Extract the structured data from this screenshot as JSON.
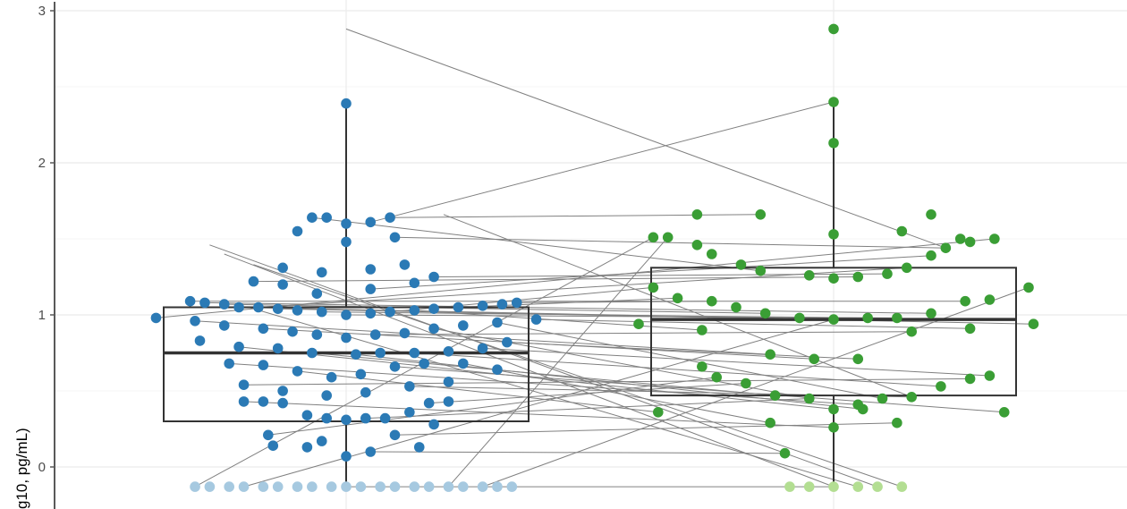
{
  "chart_data": {
    "type": "boxplot-paired",
    "title": "",
    "xlabel": "",
    "ylabel": "g10, pg/mL)",
    "ylim": [
      -0.25,
      3.05
    ],
    "yticks": [
      0,
      1,
      2,
      3
    ],
    "ytick_labels": [
      "0",
      "1",
      "2",
      "3"
    ],
    "grid": true,
    "categories": [
      "",
      ""
    ],
    "colors": {
      "group1_point": "#2b7ab5",
      "group1_below_lod": "#a6c9e0",
      "group2_point": "#3a9e35",
      "group2_below_lod": "#b3de92",
      "box_line": "#333333",
      "pair_line": "#808080",
      "grid": "#ebebeb",
      "axis": "#595959"
    },
    "boxes": [
      {
        "category_index": 0,
        "whisker_low": -0.1,
        "q1": 0.3,
        "median": 0.75,
        "q3": 1.05,
        "whisker_high": 2.39
      },
      {
        "category_index": 1,
        "whisker_low": -0.1,
        "q1": 0.47,
        "median": 0.97,
        "q3": 1.31,
        "whisker_high": 2.4
      }
    ],
    "series": [
      {
        "category_index": 0,
        "points": [
          [
            -0.39,
            0.98
          ],
          [
            -0.32,
            1.09
          ],
          [
            -0.29,
            1.08
          ],
          [
            -0.25,
            1.07
          ],
          [
            -0.22,
            1.05
          ],
          [
            -0.18,
            1.05
          ],
          [
            -0.14,
            1.04
          ],
          [
            -0.1,
            1.03
          ],
          [
            -0.05,
            1.02
          ],
          [
            0.0,
            1.0
          ],
          [
            0.05,
            1.01
          ],
          [
            0.09,
            1.02
          ],
          [
            0.14,
            1.03
          ],
          [
            0.18,
            1.04
          ],
          [
            0.23,
            1.05
          ],
          [
            0.28,
            1.06
          ],
          [
            0.32,
            1.07
          ],
          [
            0.35,
            1.08
          ],
          [
            0.39,
            0.97
          ],
          [
            -0.31,
            0.96
          ],
          [
            -0.25,
            0.93
          ],
          [
            -0.17,
            0.91
          ],
          [
            -0.11,
            0.89
          ],
          [
            -0.06,
            0.87
          ],
          [
            0.0,
            0.85
          ],
          [
            0.06,
            0.87
          ],
          [
            0.12,
            0.88
          ],
          [
            0.18,
            0.91
          ],
          [
            0.24,
            0.93
          ],
          [
            0.31,
            0.95
          ],
          [
            -0.3,
            0.83
          ],
          [
            -0.22,
            0.79
          ],
          [
            -0.14,
            0.78
          ],
          [
            -0.07,
            0.75
          ],
          [
            0.02,
            0.74
          ],
          [
            0.07,
            0.75
          ],
          [
            0.14,
            0.75
          ],
          [
            0.21,
            0.76
          ],
          [
            0.28,
            0.78
          ],
          [
            0.33,
            0.82
          ],
          [
            -0.24,
            0.68
          ],
          [
            -0.17,
            0.67
          ],
          [
            -0.1,
            0.63
          ],
          [
            -0.03,
            0.59
          ],
          [
            0.03,
            0.61
          ],
          [
            0.1,
            0.66
          ],
          [
            0.16,
            0.68
          ],
          [
            0.24,
            0.68
          ],
          [
            0.31,
            0.64
          ],
          [
            -0.21,
            0.54
          ],
          [
            -0.13,
            0.5
          ],
          [
            -0.04,
            0.47
          ],
          [
            0.04,
            0.49
          ],
          [
            0.13,
            0.53
          ],
          [
            0.21,
            0.56
          ],
          [
            -0.21,
            0.43
          ],
          [
            -0.17,
            0.43
          ],
          [
            -0.13,
            0.42
          ],
          [
            -0.08,
            0.34
          ],
          [
            -0.04,
            0.32
          ],
          [
            0.0,
            0.31
          ],
          [
            0.04,
            0.32
          ],
          [
            0.08,
            0.32
          ],
          [
            0.13,
            0.36
          ],
          [
            0.17,
            0.42
          ],
          [
            0.21,
            0.43
          ],
          [
            0.18,
            0.28
          ],
          [
            -0.16,
            0.21
          ],
          [
            -0.15,
            0.14
          ],
          [
            -0.08,
            0.13
          ],
          [
            -0.05,
            0.17
          ],
          [
            0.0,
            0.07
          ],
          [
            0.05,
            0.1
          ],
          [
            0.1,
            0.21
          ],
          [
            0.15,
            0.13
          ],
          [
            -0.07,
            1.64
          ],
          [
            -0.04,
            1.64
          ],
          [
            0.0,
            1.6
          ],
          [
            0.05,
            1.61
          ],
          [
            0.09,
            1.64
          ],
          [
            0.1,
            1.51
          ],
          [
            -0.1,
            1.55
          ],
          [
            0.0,
            1.48
          ],
          [
            -0.19,
            1.22
          ],
          [
            -0.13,
            1.31
          ],
          [
            -0.13,
            1.2
          ],
          [
            -0.05,
            1.28
          ],
          [
            0.05,
            1.3
          ],
          [
            0.12,
            1.33
          ],
          [
            0.14,
            1.21
          ],
          [
            0.18,
            1.25
          ],
          [
            -0.06,
            1.14
          ],
          [
            0.05,
            1.17
          ],
          [
            0.0,
            2.39
          ]
        ],
        "below_lod": [
          -0.31,
          -0.28,
          -0.24,
          -0.21,
          -0.17,
          -0.14,
          -0.1,
          -0.07,
          -0.03,
          0.0,
          0.03,
          0.07,
          0.1,
          0.14,
          0.17,
          0.21,
          0.24,
          0.28,
          0.31,
          0.34
        ],
        "below_lod_value": -0.13
      },
      {
        "category_index": 1,
        "points": [
          [
            0.0,
            2.88
          ],
          [
            0.0,
            2.4
          ],
          [
            0.0,
            2.13
          ],
          [
            -0.37,
            1.51
          ],
          [
            -0.28,
            1.66
          ],
          [
            -0.15,
            1.66
          ],
          [
            0.0,
            1.53
          ],
          [
            0.14,
            1.55
          ],
          [
            0.2,
            1.66
          ],
          [
            0.26,
            1.5
          ],
          [
            -0.34,
            1.51
          ],
          [
            -0.28,
            1.46
          ],
          [
            -0.25,
            1.4
          ],
          [
            -0.19,
            1.33
          ],
          [
            -0.15,
            1.29
          ],
          [
            -0.05,
            1.26
          ],
          [
            0.0,
            1.24
          ],
          [
            0.05,
            1.25
          ],
          [
            0.11,
            1.27
          ],
          [
            0.15,
            1.31
          ],
          [
            0.2,
            1.39
          ],
          [
            0.23,
            1.44
          ],
          [
            0.28,
            1.48
          ],
          [
            0.33,
            1.5
          ],
          [
            -0.37,
            1.18
          ],
          [
            -0.32,
            1.11
          ],
          [
            -0.25,
            1.09
          ],
          [
            -0.2,
            1.05
          ],
          [
            -0.14,
            1.01
          ],
          [
            -0.07,
            0.98
          ],
          [
            0.0,
            0.97
          ],
          [
            0.07,
            0.98
          ],
          [
            0.13,
            0.98
          ],
          [
            0.2,
            1.01
          ],
          [
            0.27,
            1.09
          ],
          [
            0.32,
            1.1
          ],
          [
            0.4,
            1.18
          ],
          [
            0.41,
            0.94
          ],
          [
            -0.4,
            0.94
          ],
          [
            -0.27,
            0.9
          ],
          [
            0.16,
            0.89
          ],
          [
            0.28,
            0.91
          ],
          [
            -0.13,
            0.74
          ],
          [
            -0.04,
            0.71
          ],
          [
            0.05,
            0.71
          ],
          [
            -0.27,
            0.66
          ],
          [
            -0.24,
            0.59
          ],
          [
            -0.18,
            0.55
          ],
          [
            -0.12,
            0.47
          ],
          [
            -0.05,
            0.45
          ],
          [
            0.0,
            0.38
          ],
          [
            0.06,
            0.38
          ],
          [
            0.1,
            0.45
          ],
          [
            0.16,
            0.46
          ],
          [
            0.22,
            0.53
          ],
          [
            0.28,
            0.58
          ],
          [
            0.32,
            0.6
          ],
          [
            0.35,
            0.36
          ],
          [
            -0.36,
            0.36
          ],
          [
            -0.13,
            0.29
          ],
          [
            0.0,
            0.26
          ],
          [
            0.13,
            0.29
          ],
          [
            -0.1,
            0.09
          ],
          [
            0.05,
            0.41
          ]
        ],
        "below_lod": [
          -0.09,
          -0.05,
          0.0,
          0.05,
          0.09,
          0.14
        ],
        "below_lod_value": -0.13
      }
    ],
    "pairs": [
      [
        [
          -0.39,
          0.98
        ],
        [
          0.33,
          1.5
        ]
      ],
      [
        [
          -0.32,
          1.09
        ],
        [
          0.27,
          1.09
        ]
      ],
      [
        [
          -0.29,
          1.08
        ],
        [
          0.2,
          1.01
        ]
      ],
      [
        [
          -0.25,
          1.07
        ],
        [
          -0.14,
          1.01
        ]
      ],
      [
        [
          -0.22,
          1.05
        ],
        [
          0.0,
          0.97
        ]
      ],
      [
        [
          -0.18,
          1.05
        ],
        [
          0.15,
          1.31
        ]
      ],
      [
        [
          -0.14,
          1.04
        ],
        [
          0.41,
          0.94
        ]
      ],
      [
        [
          -0.05,
          1.02
        ],
        [
          0.07,
          0.98
        ]
      ],
      [
        [
          0.0,
          1.0
        ],
        [
          0.13,
          0.98
        ]
      ],
      [
        [
          0.09,
          1.02
        ],
        [
          -0.37,
          1.18
        ]
      ],
      [
        [
          0.14,
          1.03
        ],
        [
          -0.27,
          0.9
        ]
      ],
      [
        [
          0.23,
          1.05
        ],
        [
          -0.32,
          1.11
        ]
      ],
      [
        [
          0.35,
          1.08
        ],
        [
          -0.25,
          1.09
        ]
      ],
      [
        [
          0.39,
          0.97
        ],
        [
          0.28,
          0.91
        ]
      ],
      [
        [
          -0.31,
          0.96
        ],
        [
          -0.13,
          0.74
        ]
      ],
      [
        [
          -0.17,
          0.91
        ],
        [
          -0.04,
          0.71
        ]
      ],
      [
        [
          0.06,
          0.87
        ],
        [
          0.16,
          0.89
        ]
      ],
      [
        [
          0.18,
          0.91
        ],
        [
          -0.05,
          0.45
        ]
      ],
      [
        [
          0.31,
          0.95
        ],
        [
          0.1,
          0.45
        ]
      ],
      [
        [
          -0.22,
          0.79
        ],
        [
          0.0,
          0.38
        ]
      ],
      [
        [
          -0.07,
          0.75
        ],
        [
          -0.12,
          0.47
        ]
      ],
      [
        [
          0.02,
          0.74
        ],
        [
          0.06,
          0.38
        ]
      ],
      [
        [
          0.14,
          0.75
        ],
        [
          0.22,
          0.53
        ]
      ],
      [
        [
          0.28,
          0.78
        ],
        [
          0.32,
          0.6
        ]
      ],
      [
        [
          0.33,
          0.82
        ],
        [
          0.05,
          0.71
        ]
      ],
      [
        [
          -0.24,
          0.68
        ],
        [
          0.05,
          0.41
        ]
      ],
      [
        [
          -0.1,
          0.63
        ],
        [
          -0.36,
          0.36
        ]
      ],
      [
        [
          0.1,
          0.66
        ],
        [
          0.35,
          0.36
        ]
      ],
      [
        [
          0.24,
          0.68
        ],
        [
          -0.13,
          0.29
        ]
      ],
      [
        [
          -0.21,
          0.54
        ],
        [
          0.28,
          0.58
        ]
      ],
      [
        [
          0.13,
          0.53
        ],
        [
          0.16,
          0.46
        ]
      ],
      [
        [
          -0.21,
          0.43
        ],
        [
          0.0,
          0.26
        ]
      ],
      [
        [
          0.04,
          0.32
        ],
        [
          -0.05,
          0.45
        ]
      ],
      [
        [
          0.17,
          0.42
        ],
        [
          -0.18,
          0.55
        ]
      ],
      [
        [
          -0.16,
          0.21
        ],
        [
          -0.24,
          0.59
        ]
      ],
      [
        [
          0.1,
          0.21
        ],
        [
          0.13,
          0.29
        ]
      ],
      [
        [
          0.05,
          0.1
        ],
        [
          -0.1,
          0.09
        ]
      ],
      [
        [
          -0.07,
          1.64
        ],
        [
          -0.15,
          1.29
        ]
      ],
      [
        [
          0.05,
          1.61
        ],
        [
          0.0,
          2.4
        ]
      ],
      [
        [
          0.09,
          1.64
        ],
        [
          -0.15,
          1.66
        ]
      ],
      [
        [
          0.1,
          1.51
        ],
        [
          0.23,
          1.44
        ]
      ],
      [
        [
          -0.19,
          1.22
        ],
        [
          0.05,
          1.25
        ]
      ],
      [
        [
          0.18,
          1.25
        ],
        [
          0.11,
          1.27
        ]
      ],
      [
        [
          0.05,
          1.17
        ],
        [
          0.2,
          1.39
        ]
      ],
      [
        [
          -0.31,
          -0.13
        ],
        [
          -0.37,
          1.51
        ]
      ],
      [
        [
          -0.21,
          -0.13
        ],
        [
          0.0,
          0.97
        ]
      ],
      [
        [
          0.21,
          -0.13
        ],
        [
          -0.34,
          1.51
        ]
      ],
      [
        [
          0.28,
          -0.13
        ],
        [
          0.4,
          1.18
        ]
      ],
      [
        [
          0.0,
          -0.13
        ],
        [
          0.0,
          -0.13
        ]
      ],
      [
        [
          0.0,
          2.88
        ],
        [
          0.23,
          1.44
        ]
      ],
      [
        [
          -0.28,
          1.46
        ],
        [
          0.09,
          -0.13
        ]
      ],
      [
        [
          -0.19,
          1.33
        ],
        [
          0.14,
          -0.13
        ]
      ],
      [
        [
          -0.2,
          1.05
        ],
        [
          0.05,
          -0.13
        ]
      ],
      [
        [
          -0.25,
          1.4
        ],
        [
          0.0,
          -0.13
        ]
      ],
      [
        [
          0.2,
          1.66
        ],
        [
          0.16,
          0.46
        ]
      ]
    ]
  }
}
